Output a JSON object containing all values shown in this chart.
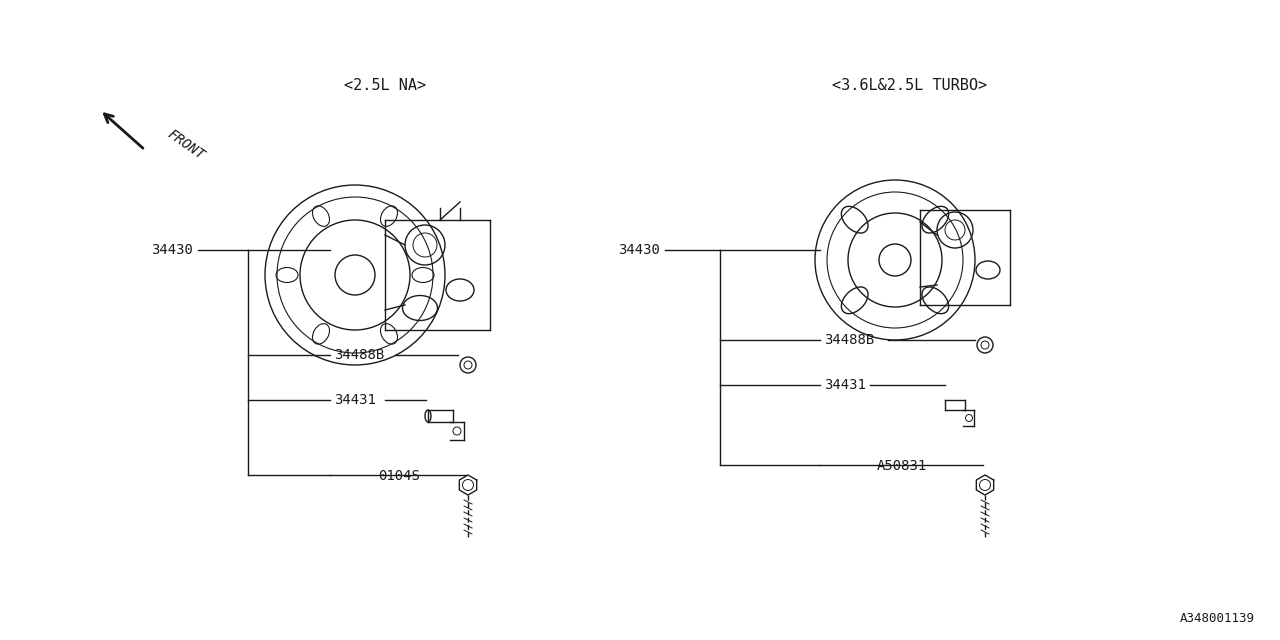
{
  "bg_color": "#ffffff",
  "line_color": "#1a1a1a",
  "text_color": "#1a1a1a",
  "left_label": "<2.5L NA>",
  "right_label": "<3.6L&2.5L TURBO>",
  "footer_id": "A348001139",
  "front_label": "FRONT",
  "left_parts": [
    {
      "id": "0104S",
      "row": 0
    },
    {
      "id": "34431",
      "row": 1
    },
    {
      "id": "34488B",
      "row": 2
    },
    {
      "id": "34430",
      "row": 3,
      "outside": true
    }
  ],
  "right_parts": [
    {
      "id": "A50831",
      "row": 0
    },
    {
      "id": "34431",
      "row": 1
    },
    {
      "id": "34488B",
      "row": 2
    },
    {
      "id": "34430",
      "row": 3,
      "outside": true
    }
  ]
}
